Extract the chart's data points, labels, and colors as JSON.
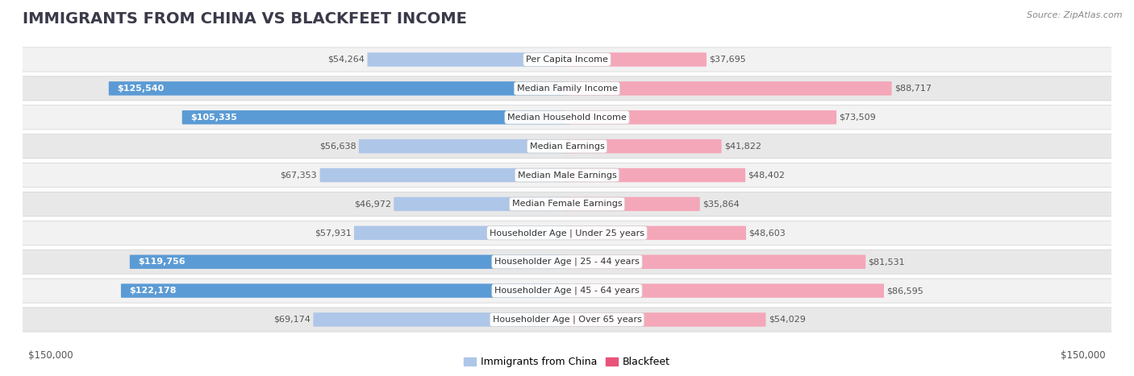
{
  "title": "IMMIGRANTS FROM CHINA VS BLACKFEET INCOME",
  "source": "Source: ZipAtlas.com",
  "categories": [
    "Per Capita Income",
    "Median Family Income",
    "Median Household Income",
    "Median Earnings",
    "Median Male Earnings",
    "Median Female Earnings",
    "Householder Age | Under 25 years",
    "Householder Age | 25 - 44 years",
    "Householder Age | 45 - 64 years",
    "Householder Age | Over 65 years"
  ],
  "china_values": [
    54264,
    125540,
    105335,
    56638,
    67353,
    46972,
    57931,
    119756,
    122178,
    69174
  ],
  "blackfeet_values": [
    37695,
    88717,
    73509,
    41822,
    48402,
    35864,
    48603,
    81531,
    86595,
    54029
  ],
  "china_labels": [
    "$54,264",
    "$125,540",
    "$105,335",
    "$56,638",
    "$67,353",
    "$46,972",
    "$57,931",
    "$119,756",
    "$122,178",
    "$69,174"
  ],
  "blackfeet_labels": [
    "$37,695",
    "$88,717",
    "$73,509",
    "$41,822",
    "$48,402",
    "$35,864",
    "$48,603",
    "$81,531",
    "$86,595",
    "$54,029"
  ],
  "china_color_light": "#aec6e8",
  "china_color_dark": "#5b9bd5",
  "blackfeet_color_light": "#f4a7b9",
  "blackfeet_color_dark": "#e9537a",
  "max_value": 150000,
  "bg_color": "#ffffff",
  "label_threshold": 100000,
  "legend_china": "Immigrants from China",
  "legend_blackfeet": "Blackfeet",
  "xlabel_left": "$150,000",
  "xlabel_right": "$150,000",
  "title_fontsize": 14,
  "label_fontsize": 8,
  "category_fontsize": 8
}
